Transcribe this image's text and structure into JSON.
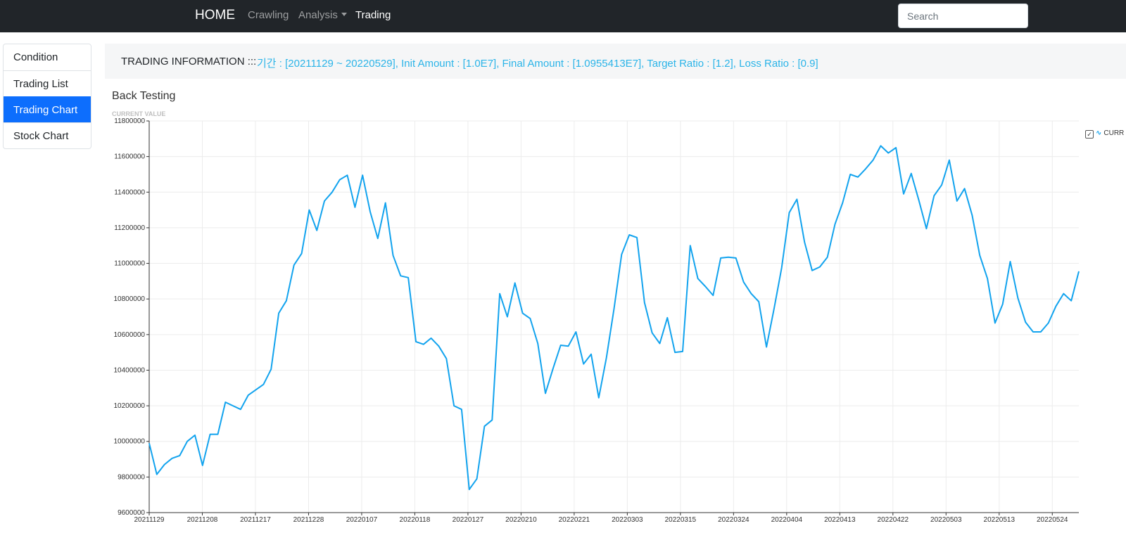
{
  "navbar": {
    "brand": "HOME",
    "links": [
      {
        "label": "Crawling"
      },
      {
        "label": "Analysis"
      },
      {
        "label": "Trading"
      }
    ],
    "search_placeholder": "Search"
  },
  "sidebar": {
    "items": [
      {
        "label": "Condition",
        "active": false
      },
      {
        "label": "Trading List",
        "active": false
      },
      {
        "label": "Trading Chart",
        "active": true
      },
      {
        "label": "Stock Chart",
        "active": false
      }
    ]
  },
  "info": {
    "label": "TRADING INFORMATION :::",
    "value": "기간 : [20211129 ~ 20220529], Init Amount : [1.0E7], Final Amount : [1.0955413E7], Target Ratio : [1.2], Loss Ratio : [0.9]"
  },
  "section_title": "Back Testing",
  "colors": {
    "navbar": "#212529",
    "active_item": "#0d6efd",
    "info_text": "#2bb4e8",
    "series_line": "#12a3ee"
  },
  "chart_data": {
    "type": "line",
    "title": "CURRENT VALUE",
    "ylim": [
      9600000,
      11800000
    ],
    "yticks": [
      9600000,
      9800000,
      10000000,
      10200000,
      10400000,
      10600000,
      10800000,
      11000000,
      11200000,
      11400000,
      11600000,
      11800000
    ],
    "x_tick_labels": [
      "20211129",
      "20211208",
      "20211217",
      "20211228",
      "20220107",
      "20220118",
      "20220127",
      "20220210",
      "20220221",
      "20220303",
      "20220315",
      "20220324",
      "20220404",
      "20220413",
      "20220422",
      "20220503",
      "20220513",
      "20220524"
    ],
    "grid": true,
    "legend": {
      "position": "right",
      "label": "CURR",
      "checked": true
    },
    "series": [
      {
        "name": "CURRENT VALUE",
        "values": [
          9990000,
          9815000,
          9870000,
          9905000,
          9920000,
          10000000,
          10035000,
          9865000,
          10040000,
          10040000,
          10220000,
          10200000,
          10180000,
          10260000,
          10290000,
          10320000,
          10405000,
          10720000,
          10790000,
          10990000,
          11055000,
          11300000,
          11185000,
          11350000,
          11400000,
          11470000,
          11495000,
          11315000,
          11495000,
          11290000,
          11140000,
          11340000,
          11045000,
          10930000,
          10920000,
          10560000,
          10545000,
          10580000,
          10535000,
          10465000,
          10200000,
          10180000,
          9730000,
          9790000,
          10085000,
          10120000,
          10830000,
          10700000,
          10890000,
          10720000,
          10690000,
          10550000,
          10270000,
          10410000,
          10540000,
          10535000,
          10615000,
          10435000,
          10490000,
          10245000,
          10470000,
          10745000,
          11050000,
          11160000,
          11145000,
          10780000,
          10610000,
          10550000,
          10695000,
          10500000,
          10505000,
          11100000,
          10915000,
          10870000,
          10820000,
          11030000,
          11035000,
          11030000,
          10895000,
          10830000,
          10785000,
          10530000,
          10745000,
          10975000,
          11285000,
          11360000,
          11120000,
          10960000,
          10980000,
          11035000,
          11220000,
          11340000,
          11500000,
          11485000,
          11530000,
          11580000,
          11660000,
          11620000,
          11650000,
          11390000,
          11505000,
          11355000,
          11195000,
          11380000,
          11440000,
          11580000,
          11350000,
          11420000,
          11270000,
          11045000,
          10915000,
          10665000,
          10770000,
          11010000,
          10805000,
          10670000,
          10615000,
          10615000,
          10665000,
          10760000,
          10830000,
          10790000,
          10955000
        ]
      }
    ]
  }
}
